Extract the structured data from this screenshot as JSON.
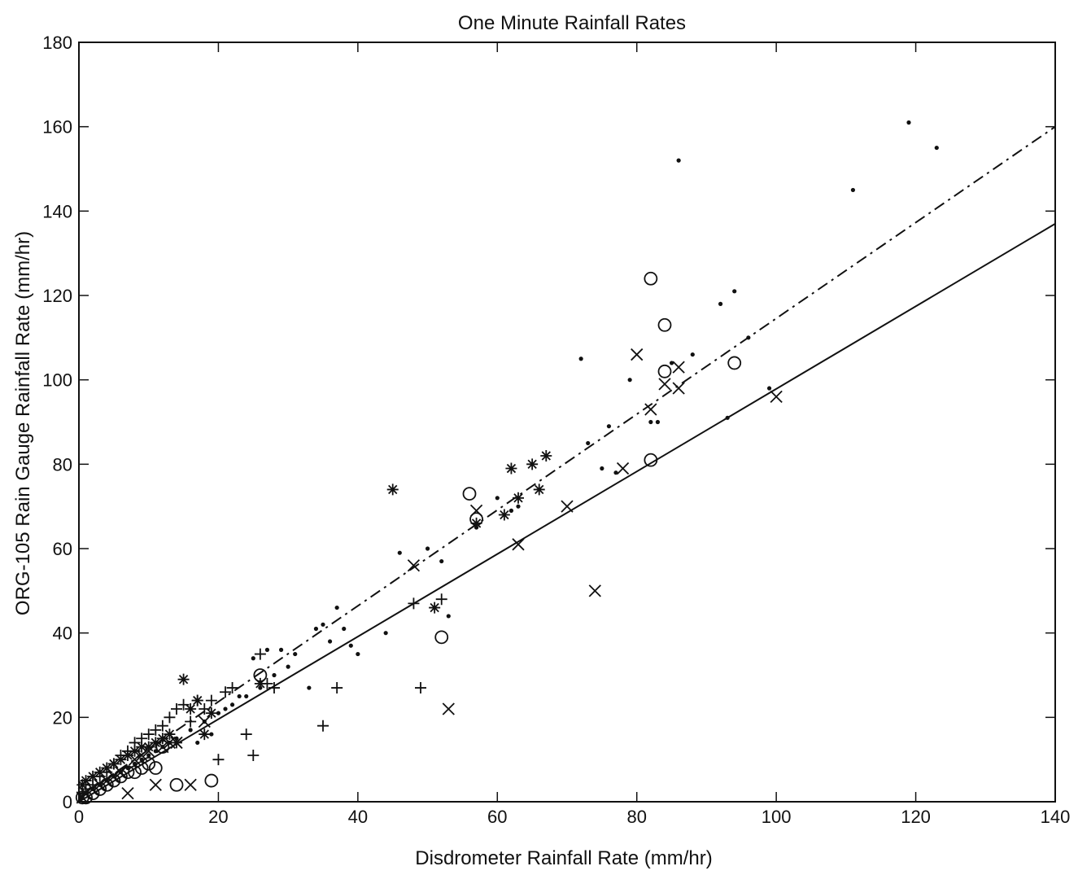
{
  "chart_data": {
    "type": "scatter",
    "title": "One Minute Rainfall Rates",
    "xlabel": "Disdrometer Rainfall Rate (mm/hr)",
    "ylabel": "ORG-105 Rain Gauge Rainfall Rate (mm/hr)",
    "xlim": [
      0,
      140
    ],
    "ylim": [
      0,
      180
    ],
    "xticks": [
      0,
      20,
      40,
      60,
      80,
      100,
      120,
      140
    ],
    "yticks": [
      0,
      20,
      40,
      60,
      80,
      100,
      120,
      140,
      160,
      180
    ],
    "grid": false,
    "series": [
      {
        "marker": "dot",
        "points": [
          [
            0.5,
            1
          ],
          [
            1,
            2
          ],
          [
            2,
            3
          ],
          [
            3,
            4
          ],
          [
            4,
            5
          ],
          [
            5,
            6
          ],
          [
            6,
            7
          ],
          [
            7,
            8
          ],
          [
            8,
            9
          ],
          [
            9,
            10
          ],
          [
            10,
            11
          ],
          [
            11,
            12
          ],
          [
            12,
            13
          ],
          [
            13,
            14
          ],
          [
            14,
            15
          ],
          [
            16,
            17
          ],
          [
            18,
            19
          ],
          [
            20,
            21
          ],
          [
            22,
            23
          ],
          [
            24,
            25
          ],
          [
            26,
            27
          ],
          [
            28,
            30
          ],
          [
            30,
            32
          ],
          [
            31,
            35
          ],
          [
            33,
            27
          ],
          [
            34,
            41
          ],
          [
            35,
            42
          ],
          [
            36,
            38
          ],
          [
            37,
            46
          ],
          [
            38,
            41
          ],
          [
            39,
            37
          ],
          [
            40,
            35
          ],
          [
            44,
            40
          ],
          [
            46,
            59
          ],
          [
            50,
            60
          ],
          [
            51,
            46
          ],
          [
            52,
            57
          ],
          [
            53,
            44
          ],
          [
            57,
            65
          ],
          [
            60,
            72
          ],
          [
            62,
            69
          ],
          [
            63,
            70
          ],
          [
            72,
            105
          ],
          [
            73,
            85
          ],
          [
            75,
            79
          ],
          [
            76,
            89
          ],
          [
            77,
            78
          ],
          [
            79,
            100
          ],
          [
            82,
            90
          ],
          [
            83,
            90
          ],
          [
            85,
            104
          ],
          [
            86,
            152
          ],
          [
            88,
            106
          ],
          [
            92,
            118
          ],
          [
            93,
            91
          ],
          [
            94,
            121
          ],
          [
            96,
            110
          ],
          [
            99,
            98
          ],
          [
            111,
            145
          ],
          [
            119,
            161
          ],
          [
            123,
            155
          ],
          [
            25,
            34
          ],
          [
            27,
            36
          ],
          [
            29,
            36
          ],
          [
            17,
            14
          ],
          [
            19,
            16
          ],
          [
            21,
            22
          ],
          [
            23,
            25
          ]
        ]
      },
      {
        "marker": "plus",
        "points": [
          [
            0.5,
            2
          ],
          [
            1,
            3
          ],
          [
            2,
            4
          ],
          [
            3,
            6
          ],
          [
            4,
            7
          ],
          [
            5,
            9
          ],
          [
            6,
            11
          ],
          [
            7,
            12
          ],
          [
            8,
            14
          ],
          [
            9,
            15
          ],
          [
            10,
            16
          ],
          [
            11,
            17
          ],
          [
            12,
            18
          ],
          [
            13,
            20
          ],
          [
            14,
            22
          ],
          [
            15,
            23
          ],
          [
            16,
            19
          ],
          [
            17,
            24
          ],
          [
            18,
            22
          ],
          [
            19,
            24
          ],
          [
            20,
            10
          ],
          [
            21,
            26
          ],
          [
            22,
            27
          ],
          [
            24,
            16
          ],
          [
            25,
            11
          ],
          [
            26,
            35
          ],
          [
            27,
            28
          ],
          [
            28,
            27
          ],
          [
            35,
            18
          ],
          [
            37,
            27
          ],
          [
            48,
            47
          ],
          [
            49,
            27
          ],
          [
            52,
            48
          ]
        ]
      },
      {
        "marker": "star",
        "points": [
          [
            0.5,
            4
          ],
          [
            1,
            5
          ],
          [
            2,
            6
          ],
          [
            3,
            7
          ],
          [
            4,
            8
          ],
          [
            5,
            9
          ],
          [
            6,
            10
          ],
          [
            7,
            11
          ],
          [
            8,
            12
          ],
          [
            9,
            13
          ],
          [
            10,
            13
          ],
          [
            11,
            14
          ],
          [
            12,
            15
          ],
          [
            13,
            16
          ],
          [
            14,
            14
          ],
          [
            15,
            29
          ],
          [
            16,
            22
          ],
          [
            17,
            24
          ],
          [
            18,
            16
          ],
          [
            19,
            21
          ],
          [
            26,
            28
          ],
          [
            45,
            74
          ],
          [
            51,
            46
          ],
          [
            57,
            66
          ],
          [
            61,
            68
          ],
          [
            62,
            79
          ],
          [
            63,
            72
          ],
          [
            65,
            80
          ],
          [
            66,
            74
          ],
          [
            67,
            82
          ]
        ]
      },
      {
        "marker": "circle",
        "points": [
          [
            0.5,
            1
          ],
          [
            1,
            1
          ],
          [
            2,
            2
          ],
          [
            3,
            3
          ],
          [
            4,
            4
          ],
          [
            5,
            5
          ],
          [
            6,
            6
          ],
          [
            7,
            7
          ],
          [
            8,
            7
          ],
          [
            9,
            8
          ],
          [
            10,
            9
          ],
          [
            11,
            8
          ],
          [
            12,
            13
          ],
          [
            14,
            4
          ],
          [
            19,
            5
          ],
          [
            26,
            30
          ],
          [
            52,
            39
          ],
          [
            56,
            73
          ],
          [
            57,
            67
          ],
          [
            82,
            124
          ],
          [
            82,
            81
          ],
          [
            84,
            113
          ],
          [
            84,
            102
          ],
          [
            94,
            104
          ]
        ]
      },
      {
        "marker": "x",
        "points": [
          [
            0.5,
            1
          ],
          [
            1,
            2
          ],
          [
            2,
            3
          ],
          [
            3,
            4
          ],
          [
            4,
            5
          ],
          [
            5,
            6
          ],
          [
            6,
            7
          ],
          [
            7,
            2
          ],
          [
            8,
            10
          ],
          [
            9,
            11
          ],
          [
            10,
            12
          ],
          [
            11,
            4
          ],
          [
            12,
            13
          ],
          [
            13,
            14
          ],
          [
            14,
            14
          ],
          [
            16,
            4
          ],
          [
            18,
            19
          ],
          [
            48,
            56
          ],
          [
            53,
            22
          ],
          [
            57,
            69
          ],
          [
            63,
            61
          ],
          [
            70,
            70
          ],
          [
            74,
            50
          ],
          [
            78,
            79
          ],
          [
            80,
            106
          ],
          [
            82,
            93
          ],
          [
            84,
            99
          ],
          [
            86,
            98
          ],
          [
            86,
            103
          ],
          [
            100,
            96
          ]
        ]
      }
    ],
    "lines": [
      {
        "style": "solid",
        "points": [
          [
            0,
            0
          ],
          [
            140,
            137
          ]
        ]
      },
      {
        "style": "dashdot",
        "points": [
          [
            0,
            1
          ],
          [
            140,
            160
          ]
        ]
      }
    ]
  }
}
